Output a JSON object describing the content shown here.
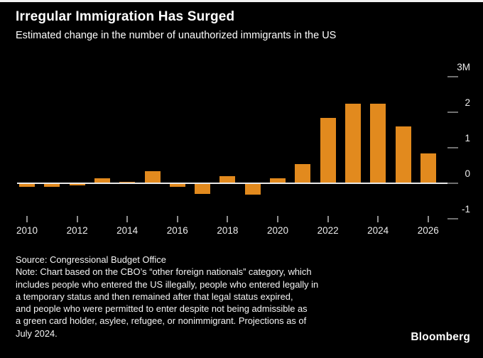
{
  "header": {
    "title": "Irregular Immigration Has Surged",
    "subtitle": "Estimated change in the number of unauthorized immigrants in the US"
  },
  "chart_data": {
    "type": "bar",
    "title": "Irregular Immigration Has Surged",
    "subtitle": "Estimated change in the number of unauthorized immigrants in the US",
    "unit": "millions of people",
    "categories": [
      2010,
      2011,
      2012,
      2013,
      2014,
      2015,
      2016,
      2017,
      2018,
      2019,
      2020,
      2021,
      2022,
      2023,
      2024,
      2025,
      2026
    ],
    "values": [
      -0.08,
      -0.08,
      -0.02,
      0.15,
      0.05,
      0.35,
      -0.08,
      -0.28,
      0.2,
      -0.3,
      0.15,
      0.55,
      1.85,
      2.25,
      2.25,
      1.6,
      0.85
    ],
    "ylim": [
      -1,
      3
    ],
    "yticks": [
      {
        "value": 3,
        "label": "3M"
      },
      {
        "value": 2,
        "label": "2"
      },
      {
        "value": 1,
        "label": "1"
      },
      {
        "value": 0,
        "label": "0"
      },
      {
        "value": -1,
        "label": "-1"
      }
    ],
    "xticks": [
      2010,
      2012,
      2014,
      2016,
      2018,
      2020,
      2022,
      2024,
      2026
    ],
    "bar_color": "#E28A1E",
    "background": "#000000",
    "grid": "off",
    "legend": "none",
    "y_axis_side": "right"
  },
  "footer": {
    "source": "Source: Congressional Budget Office",
    "note_lines": [
      "Note: Chart based on the CBO’s “other foreign nationals” category, which",
      "includes people who entered the US illegally, people who entered legally in",
      "a temporary status and then remained after that legal status expired,",
      "and people who were permitted to enter despite not being admissible as",
      "a green card holder, asylee, refugee, or nonimmigrant. Projections as of",
      "July 2024."
    ]
  },
  "branding": {
    "logo": "Bloomberg"
  }
}
